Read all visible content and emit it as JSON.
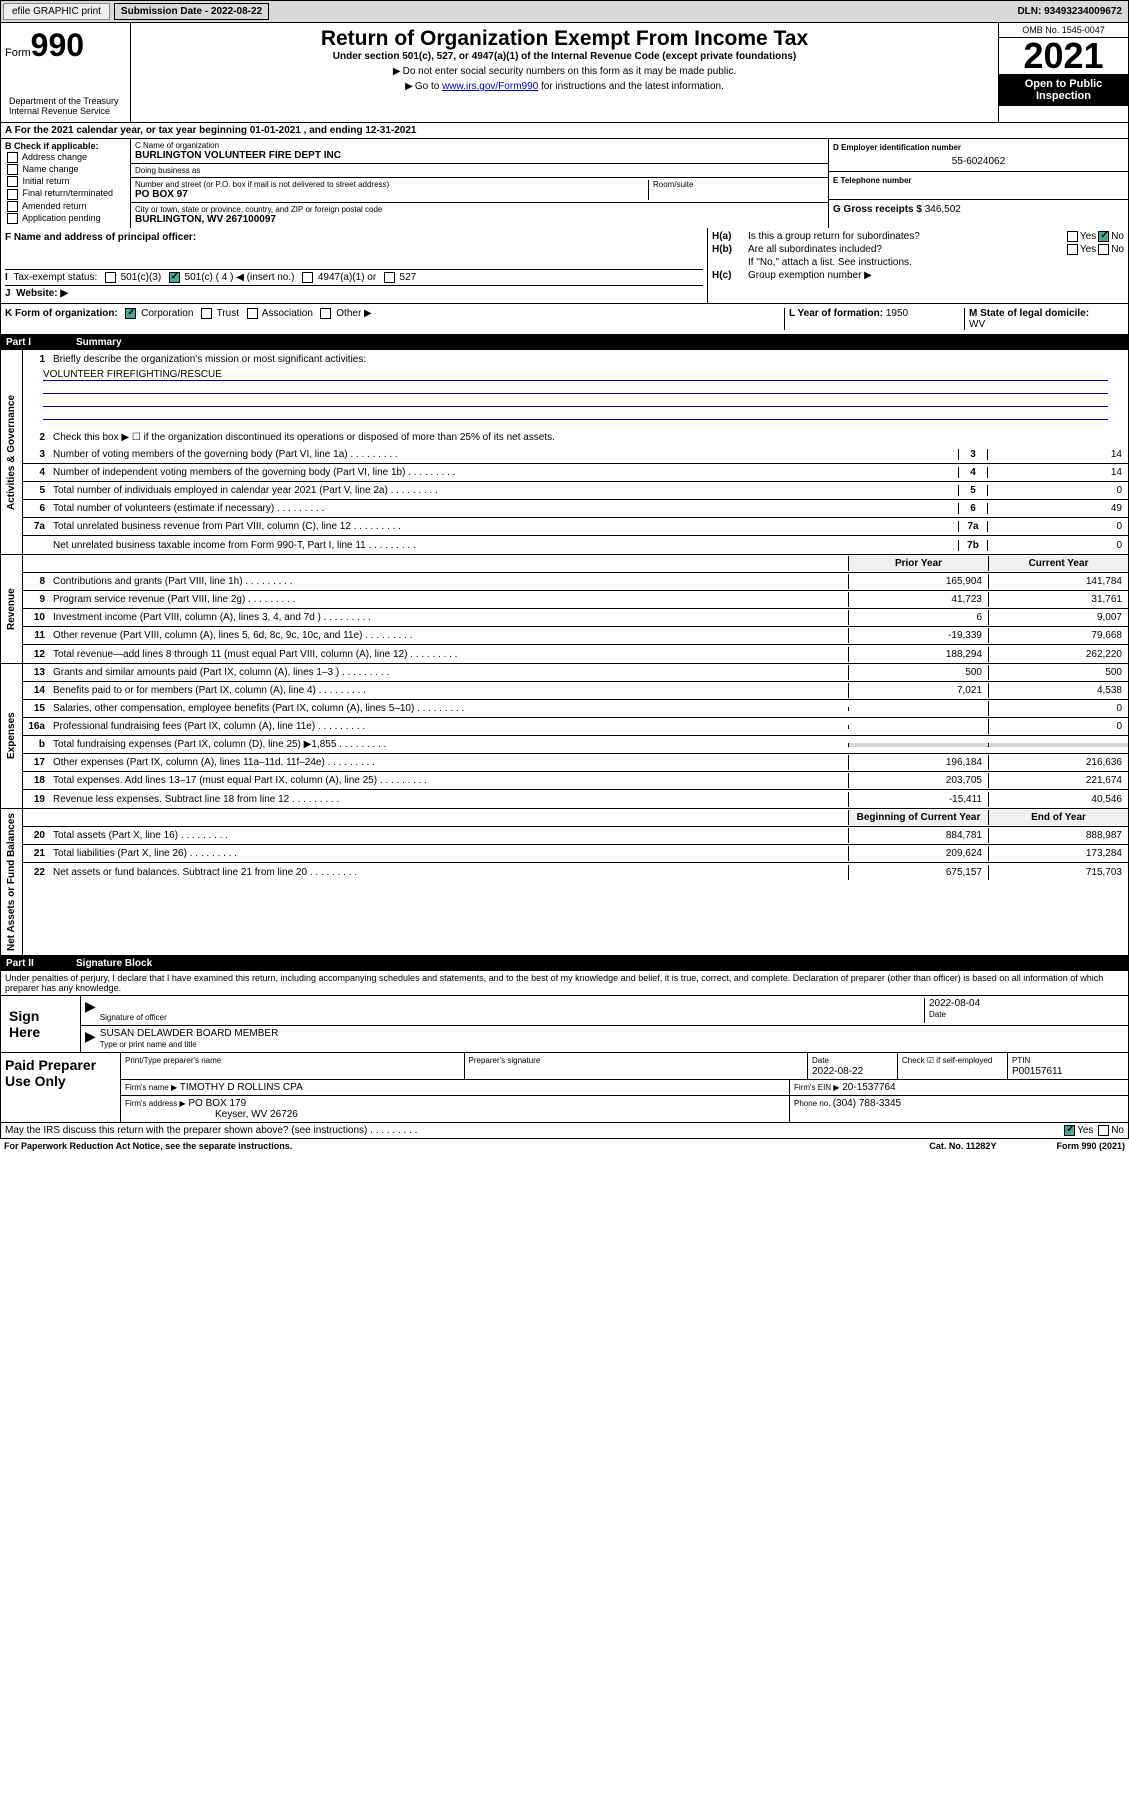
{
  "top": {
    "efile": "efile GRAPHIC print",
    "sub_date_lbl": "Submission Date - ",
    "sub_date": "2022-08-22",
    "dln_lbl": "DLN: ",
    "dln": "93493234009672"
  },
  "header": {
    "form_lbl": "Form",
    "form_num": "990",
    "title": "Return of Organization Exempt From Income Tax",
    "subtitle": "Under section 501(c), 527, or 4947(a)(1) of the Internal Revenue Code (except private foundations)",
    "note1": "Do not enter social security numbers on this form as it may be made public.",
    "note2_pre": "Go to ",
    "note2_link": "www.irs.gov/Form990",
    "note2_post": " for instructions and the latest information.",
    "omb": "OMB No. 1545-0047",
    "year": "2021",
    "open_pub": "Open to Public Inspection",
    "dept": "Department of the Treasury Internal Revenue Service"
  },
  "row_a": "For the 2021 calendar year, or tax year beginning 01-01-2021   , and ending 12-31-2021",
  "b": {
    "lbl": "B Check if applicable:",
    "addr_change": "Address change",
    "name_change": "Name change",
    "initial": "Initial return",
    "final": "Final return/terminated",
    "amended": "Amended return",
    "app_pending": "Application pending"
  },
  "c": {
    "name_lbl": "C Name of organization",
    "name": "BURLINGTON VOLUNTEER FIRE DEPT INC",
    "dba_lbl": "Doing business as",
    "dba": "",
    "street_lbl": "Number and street (or P.O. box if mail is not delivered to street address)",
    "room_lbl": "Room/suite",
    "street": "PO BOX 97",
    "city_lbl": "City or town, state or province, country, and ZIP or foreign postal code",
    "city": "BURLINGTON, WV  267100097"
  },
  "d": {
    "lbl": "D Employer identification number",
    "val": "55-6024062"
  },
  "e": {
    "lbl": "E Telephone number",
    "val": ""
  },
  "g": {
    "lbl": "G Gross receipts $ ",
    "val": "346,502"
  },
  "f": {
    "lbl": "F  Name and address of principal officer:",
    "val": ""
  },
  "i": {
    "lbl": "Tax-exempt status:",
    "c3": "501(c)(3)",
    "c_pre": "501(c) ( ",
    "c_num": "4",
    "c_post": " ) ◀ (insert no.)",
    "a1": "4947(a)(1) or",
    "527": "527"
  },
  "j": {
    "lbl": "Website: ▶",
    "val": ""
  },
  "h": {
    "a_lbl": "H(a)",
    "a_txt": "Is this a group return for subordinates?",
    "b_lbl": "H(b)",
    "b_txt": "Are all subordinates included?",
    "b_note": "If \"No,\" attach a list. See instructions.",
    "c_lbl": "H(c)",
    "c_txt": "Group exemption number ▶",
    "yes": "Yes",
    "no": "No"
  },
  "k": {
    "lbl": "K Form of organization:",
    "corp": "Corporation",
    "trust": "Trust",
    "assoc": "Association",
    "other": "Other ▶"
  },
  "l": {
    "lbl": "L Year of formation: ",
    "val": "1950"
  },
  "m": {
    "lbl": "M State of legal domicile:",
    "val": "WV"
  },
  "part1": {
    "num": "Part I",
    "title": "Summary"
  },
  "summary": {
    "q1": "Briefly describe the organization's mission or most significant activities:",
    "mission": "VOLUNTEER FIREFIGHTING/RESCUE",
    "q2": "Check this box ▶  ☐  if the organization discontinued its operations or disposed of more than 25% of its net assets.",
    "rows_gov": [
      {
        "n": "3",
        "t": "Number of voting members of the governing body (Part VI, line 1a)",
        "b": "3",
        "v": "14"
      },
      {
        "n": "4",
        "t": "Number of independent voting members of the governing body (Part VI, line 1b)",
        "b": "4",
        "v": "14"
      },
      {
        "n": "5",
        "t": "Total number of individuals employed in calendar year 2021 (Part V, line 2a)",
        "b": "5",
        "v": "0"
      },
      {
        "n": "6",
        "t": "Total number of volunteers (estimate if necessary)",
        "b": "6",
        "v": "49"
      },
      {
        "n": "7a",
        "t": "Total unrelated business revenue from Part VIII, column (C), line 12",
        "b": "7a",
        "v": "0"
      },
      {
        "n": "",
        "t": "Net unrelated business taxable income from Form 990-T, Part I, line 11",
        "b": "7b",
        "v": "0"
      }
    ],
    "hdr_prior": "Prior Year",
    "hdr_curr": "Current Year",
    "rows_rev": [
      {
        "n": "8",
        "t": "Contributions and grants (Part VIII, line 1h)",
        "p": "165,904",
        "c": "141,784"
      },
      {
        "n": "9",
        "t": "Program service revenue (Part VIII, line 2g)",
        "p": "41,723",
        "c": "31,761"
      },
      {
        "n": "10",
        "t": "Investment income (Part VIII, column (A), lines 3, 4, and 7d )",
        "p": "6",
        "c": "9,007"
      },
      {
        "n": "11",
        "t": "Other revenue (Part VIII, column (A), lines 5, 6d, 8c, 9c, 10c, and 11e)",
        "p": "-19,339",
        "c": "79,668"
      },
      {
        "n": "12",
        "t": "Total revenue—add lines 8 through 11 (must equal Part VIII, column (A), line 12)",
        "p": "188,294",
        "c": "262,220"
      }
    ],
    "rows_exp": [
      {
        "n": "13",
        "t": "Grants and similar amounts paid (Part IX, column (A), lines 1–3 )",
        "p": "500",
        "c": "500"
      },
      {
        "n": "14",
        "t": "Benefits paid to or for members (Part IX, column (A), line 4)",
        "p": "7,021",
        "c": "4,538"
      },
      {
        "n": "15",
        "t": "Salaries, other compensation, employee benefits (Part IX, column (A), lines 5–10)",
        "p": "",
        "c": "0"
      },
      {
        "n": "16a",
        "t": "Professional fundraising fees (Part IX, column (A), line 11e)",
        "p": "",
        "c": "0"
      },
      {
        "n": "b",
        "t": "Total fundraising expenses (Part IX, column (D), line 25) ▶1,855",
        "p": "shade",
        "c": "shade"
      },
      {
        "n": "17",
        "t": "Other expenses (Part IX, column (A), lines 11a–11d, 11f–24e)",
        "p": "196,184",
        "c": "216,636"
      },
      {
        "n": "18",
        "t": "Total expenses. Add lines 13–17 (must equal Part IX, column (A), line 25)",
        "p": "203,705",
        "c": "221,674"
      },
      {
        "n": "19",
        "t": "Revenue less expenses. Subtract line 18 from line 12",
        "p": "-15,411",
        "c": "40,546"
      }
    ],
    "hdr_beg": "Beginning of Current Year",
    "hdr_end": "End of Year",
    "rows_net": [
      {
        "n": "20",
        "t": "Total assets (Part X, line 16)",
        "p": "884,781",
        "c": "888,987"
      },
      {
        "n": "21",
        "t": "Total liabilities (Part X, line 26)",
        "p": "209,624",
        "c": "173,284"
      },
      {
        "n": "22",
        "t": "Net assets or fund balances. Subtract line 21 from line 20",
        "p": "675,157",
        "c": "715,703"
      }
    ],
    "vtab_gov": "Activities & Governance",
    "vtab_rev": "Revenue",
    "vtab_exp": "Expenses",
    "vtab_net": "Net Assets or Fund Balances"
  },
  "part2": {
    "num": "Part II",
    "title": "Signature Block"
  },
  "sig": {
    "decl": "Under penalties of perjury, I declare that I have examined this return, including accompanying schedules and statements, and to the best of my knowledge and belief, it is true, correct, and complete. Declaration of preparer (other than officer) is based on all information of which preparer has any knowledge.",
    "sign_here": "Sign Here",
    "sig_officer": "Signature of officer",
    "date": "Date",
    "date_val": "2022-08-04",
    "name_title": "SUSAN DELAWDER  BOARD MEMBER",
    "name_title_lbl": "Type or print name and title"
  },
  "paid": {
    "lbl": "Paid Preparer Use Only",
    "print_name_lbl": "Print/Type preparer's name",
    "prep_sig_lbl": "Preparer's signature",
    "date_lbl": "Date",
    "date_val": "2022-08-22",
    "self_emp": "Check ☑ if self-employed",
    "ptin_lbl": "PTIN",
    "ptin": "P00157611",
    "firm_name_lbl": "Firm's name    ▶",
    "firm_name": "TIMOTHY D ROLLINS CPA",
    "firm_ein_lbl": "Firm's EIN ▶",
    "firm_ein": "20-1537764",
    "firm_addr_lbl": "Firm's address ▶",
    "firm_addr1": "PO BOX 179",
    "firm_addr2": "Keyser, WV  26726",
    "phone_lbl": "Phone no. ",
    "phone": "(304) 788-3345"
  },
  "footer": {
    "discuss": "May the IRS discuss this return with the preparer shown above? (see instructions)",
    "yes": "Yes",
    "no": "No",
    "pra": "For Paperwork Reduction Act Notice, see the separate instructions.",
    "cat": "Cat. No. 11282Y",
    "form": "Form 990 (2021)"
  }
}
